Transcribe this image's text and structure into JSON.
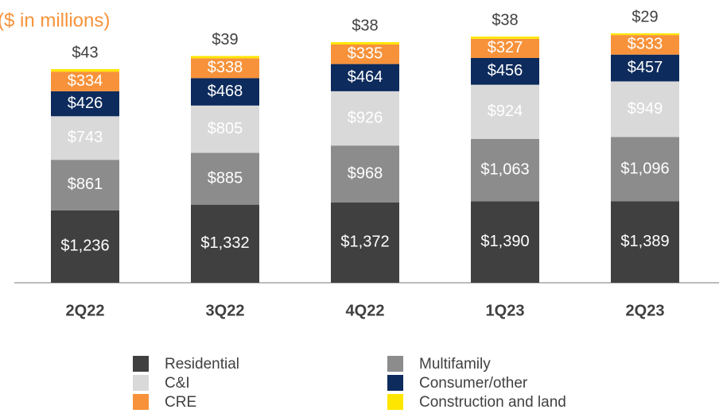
{
  "chart_data": {
    "type": "stacked_bar",
    "title": "($ in millions)",
    "categories": [
      "2Q22",
      "3Q22",
      "4Q22",
      "1Q23",
      "2Q23"
    ],
    "series": [
      {
        "name": "Residential",
        "color": "#404040",
        "values": [
          1236,
          1332,
          1372,
          1390,
          1389
        ],
        "value_labels": [
          "$1,236",
          "$1,332",
          "$1,372",
          "$1,390",
          "$1,389"
        ]
      },
      {
        "name": "Multifamily",
        "color": "#8c8c8c",
        "values": [
          861,
          885,
          968,
          1063,
          1096
        ],
        "value_labels": [
          "$861",
          "$885",
          "$968",
          "$1,063",
          "$1,096"
        ]
      },
      {
        "name": "C&I",
        "color": "#d9d9d9",
        "values": [
          743,
          805,
          926,
          924,
          949
        ],
        "value_labels": [
          "$743",
          "$805",
          "$926",
          "$924",
          "$949"
        ]
      },
      {
        "name": "Consumer/other",
        "color": "#0d2b5c",
        "values": [
          426,
          468,
          464,
          456,
          457
        ],
        "value_labels": [
          "$426",
          "$468",
          "$464",
          "$456",
          "$457"
        ]
      },
      {
        "name": "CRE",
        "color": "#f7923a",
        "values": [
          334,
          338,
          335,
          327,
          333
        ],
        "value_labels": [
          "$334",
          "$338",
          "$335",
          "$327",
          "$333"
        ]
      },
      {
        "name": "Construction and land",
        "color": "#ffe600",
        "values": [
          43,
          39,
          38,
          38,
          29
        ],
        "value_labels": [
          "$43",
          "$39",
          "$38",
          "$38",
          "$29"
        ]
      }
    ]
  }
}
